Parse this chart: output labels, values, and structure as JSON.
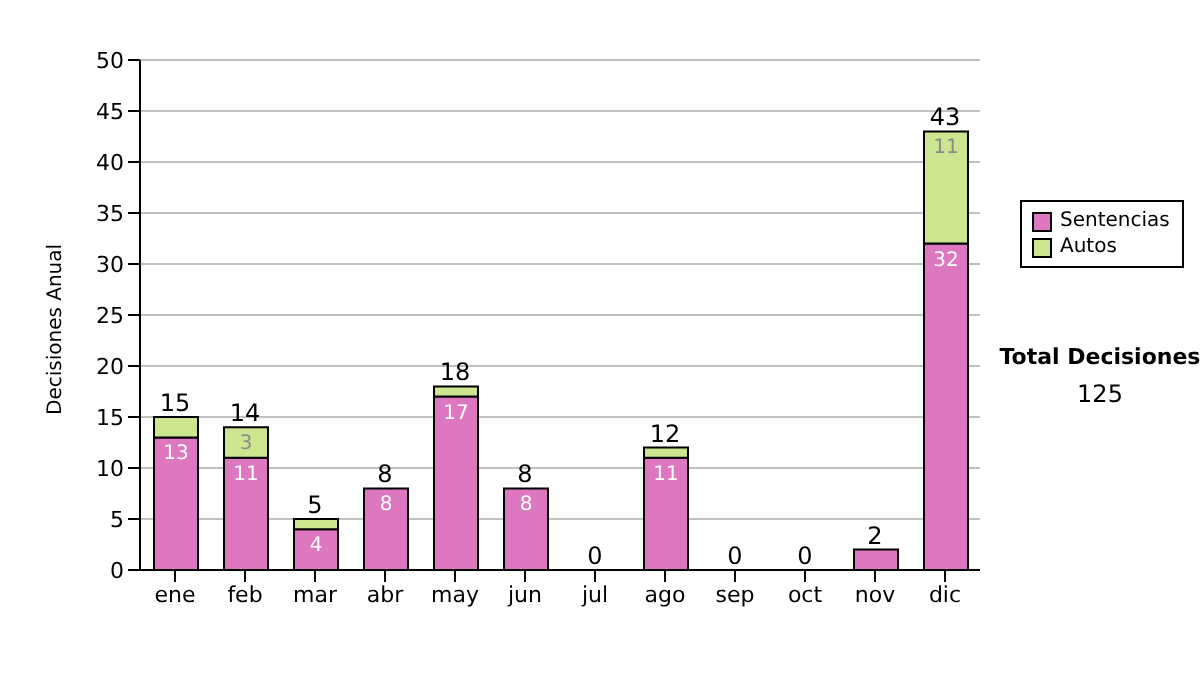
{
  "chart_data": {
    "type": "bar",
    "stacked": true,
    "ylabel": "Decisiones Anual",
    "categories": [
      "ene",
      "feb",
      "mar",
      "abr",
      "may",
      "jun",
      "jul",
      "ago",
      "sep",
      "oct",
      "nov",
      "dic"
    ],
    "series": [
      {
        "name": "Sentencias",
        "color": "#dd77c0",
        "values": [
          13,
          11,
          4,
          8,
          17,
          8,
          0,
          11,
          0,
          0,
          2,
          32
        ],
        "value_labels": [
          "13",
          "11",
          "4",
          "8",
          "17",
          "8",
          null,
          "11",
          null,
          null,
          null,
          "32"
        ]
      },
      {
        "name": "Autos",
        "color": "#cce690",
        "values": [
          2,
          3,
          1,
          0,
          1,
          0,
          0,
          1,
          0,
          0,
          0,
          11
        ],
        "value_labels": [
          null,
          "3",
          null,
          null,
          null,
          null,
          null,
          null,
          null,
          null,
          null,
          "11"
        ]
      }
    ],
    "totals": [
      "15",
      "14",
      "5",
      "8",
      "18",
      "8",
      "0",
      "12",
      "0",
      "0",
      "2",
      "43"
    ],
    "ylim": [
      0,
      50
    ],
    "yticks": [
      0,
      5,
      10,
      15,
      20,
      25,
      30,
      35,
      40,
      45,
      50
    ],
    "grid": "y",
    "legend": "right",
    "annotations": [
      "Total Decisiones",
      "125"
    ]
  }
}
